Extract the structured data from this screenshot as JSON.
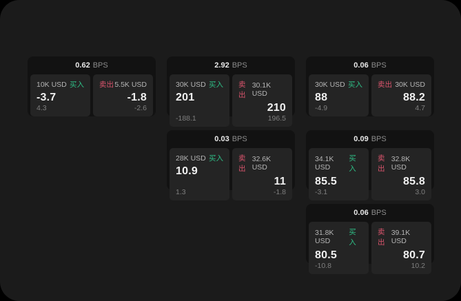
{
  "labels": {
    "bps_unit": "BPS",
    "buy": "买入",
    "sell": "卖出"
  },
  "colors": {
    "background": "#1b1b1b",
    "card": "#121212",
    "panel": "#242424",
    "buy": "#2ebd85",
    "sell": "#d9546c"
  },
  "cards": [
    {
      "bps": "0.62",
      "buy": {
        "size": "10K USD",
        "price": "-3.7",
        "change": "4.3"
      },
      "sell": {
        "size": "5.5K USD",
        "price": "-1.8",
        "change": "-2.6"
      }
    },
    {
      "bps": "2.92",
      "buy": {
        "size": "30K USD",
        "price": "201",
        "change": "-188.1"
      },
      "sell": {
        "size": "30.1K USD",
        "price": "210",
        "change": "196.5"
      }
    },
    {
      "bps": "0.06",
      "buy": {
        "size": "30K USD",
        "price": "88",
        "change": "-4.9"
      },
      "sell": {
        "size": "30K USD",
        "price": "88.2",
        "change": "4.7"
      }
    },
    {
      "bps": "0.03",
      "buy": {
        "size": "28K USD",
        "price": "10.9",
        "change": "1.3"
      },
      "sell": {
        "size": "32.6K USD",
        "price": "11",
        "change": "-1.8"
      }
    },
    {
      "bps": "0.09",
      "buy": {
        "size": "34.1K USD",
        "price": "85.5",
        "change": "-3.1"
      },
      "sell": {
        "size": "32.8K USD",
        "price": "85.8",
        "change": "3.0"
      }
    },
    {
      "bps": "0.06",
      "buy": {
        "size": "31.8K USD",
        "price": "80.5",
        "change": "-10.8"
      },
      "sell": {
        "size": "39.1K USD",
        "price": "80.7",
        "change": "10.2"
      }
    }
  ]
}
